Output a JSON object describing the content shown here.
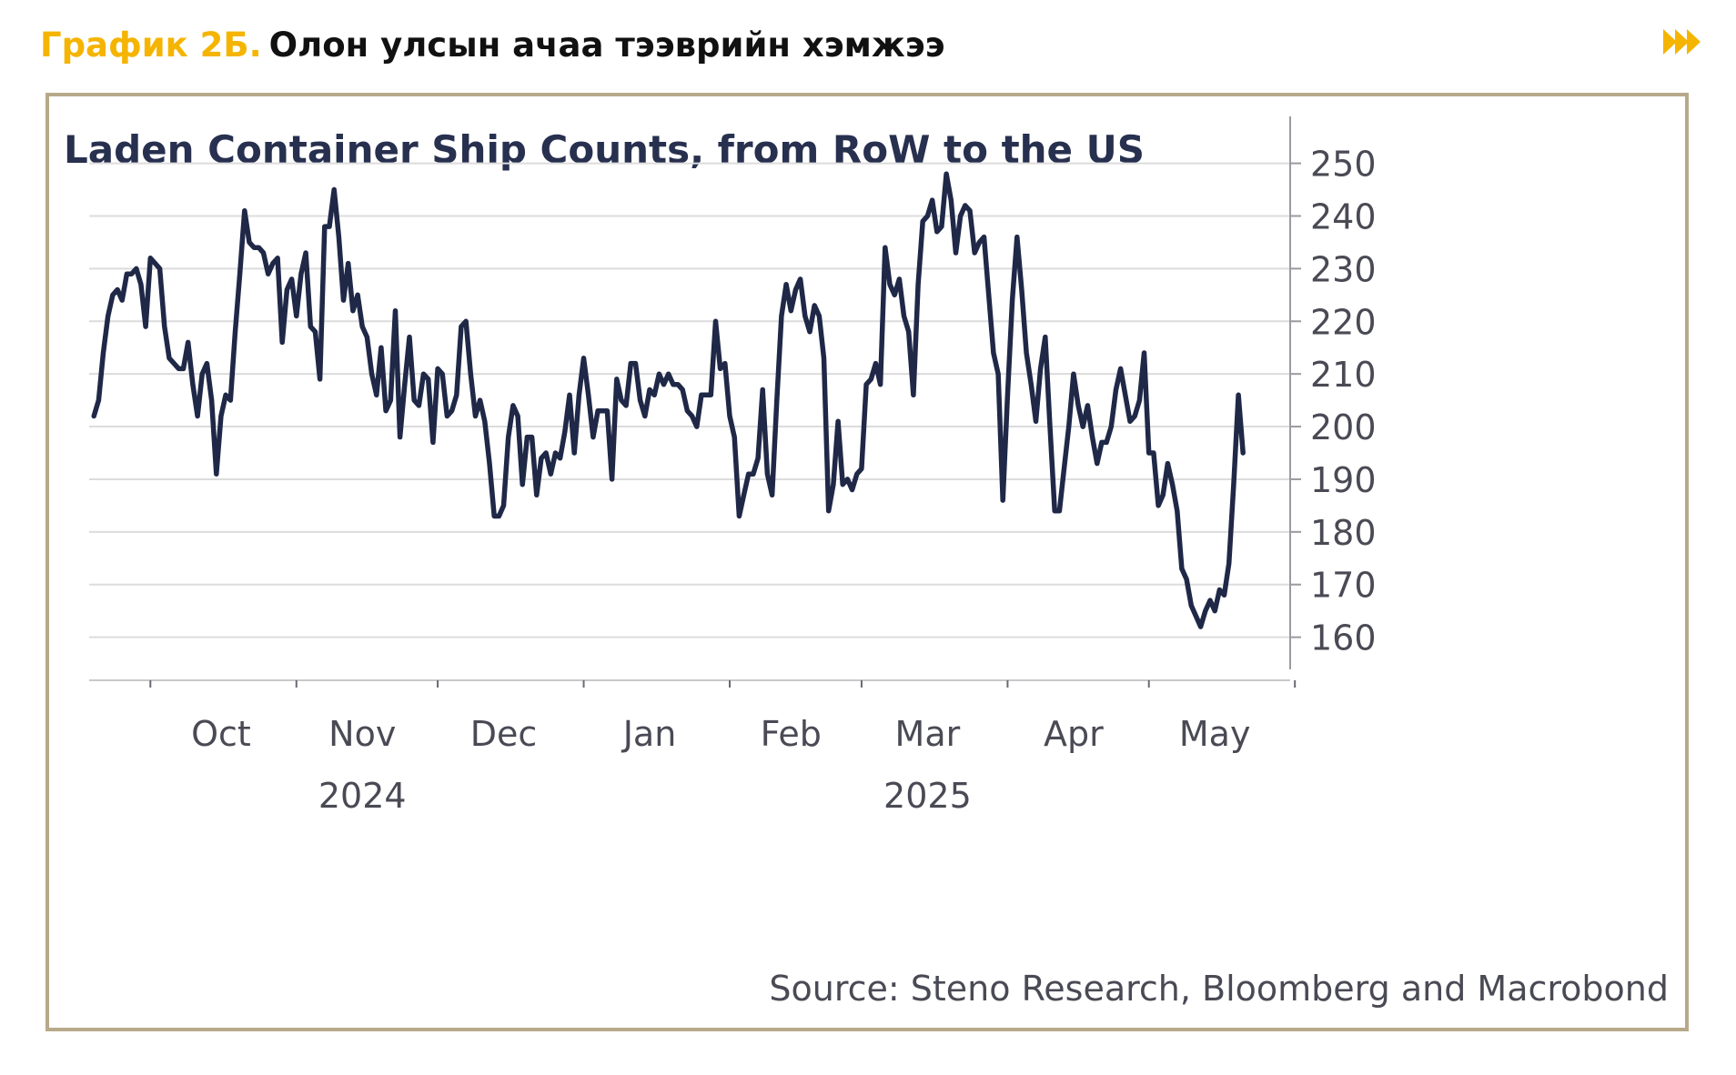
{
  "header": {
    "label": "График 2Б.",
    "title": "Олон улсын ачаа тээврийн хэмжээ",
    "next_icon": "fast-forward-icon"
  },
  "colors": {
    "accent": "#F5B400",
    "line": "#1F2847",
    "frame": "#B7A98A",
    "grid": "#DCDCDC"
  },
  "chart_data": {
    "type": "line",
    "title": "Laden Container Ship Counts, from RoW to the US",
    "source": "Source: Steno Research, Bloomberg and Macrobond",
    "y_axis": {
      "position": "right",
      "ylim": [
        157,
        252
      ],
      "ticks": [
        "160",
        "170",
        "180",
        "190",
        "200",
        "210",
        "220",
        "230",
        "240",
        "250"
      ]
    },
    "x_axis": {
      "xlim": [
        "2024-09-18",
        "2025-05-31"
      ],
      "month_labels": [
        {
          "date": "2024-10-16",
          "label": "Oct"
        },
        {
          "date": "2024-11-15",
          "label": "Nov"
        },
        {
          "date": "2024-12-15",
          "label": "Dec"
        },
        {
          "date": "2025-01-15",
          "label": "Jan"
        },
        {
          "date": "2025-02-14",
          "label": "Feb"
        },
        {
          "date": "2025-03-15",
          "label": "Mar"
        },
        {
          "date": "2025-04-15",
          "label": "Apr"
        },
        {
          "date": "2025-05-15",
          "label": "May"
        }
      ],
      "year_labels": [
        {
          "date": "2024-11-15",
          "label": "2024"
        },
        {
          "date": "2025-03-15",
          "label": "2025"
        }
      ],
      "tick_dates": [
        "2024-10-01",
        "2024-11-01",
        "2024-12-01",
        "2025-01-01",
        "2025-02-01",
        "2025-03-01",
        "2025-04-01",
        "2025-05-01",
        "2025-06-01"
      ]
    },
    "grid": true,
    "legend": "none",
    "series": [
      {
        "points": [
          [
            "2024-09-19",
            202
          ],
          [
            "2024-09-20",
            205
          ],
          [
            "2024-09-21",
            214
          ],
          [
            "2024-09-22",
            221
          ],
          [
            "2024-09-23",
            225
          ],
          [
            "2024-09-24",
            226
          ],
          [
            "2024-09-25",
            224
          ],
          [
            "2024-09-26",
            229
          ],
          [
            "2024-09-27",
            229
          ],
          [
            "2024-09-28",
            230
          ],
          [
            "2024-09-29",
            227
          ],
          [
            "2024-09-30",
            219
          ],
          [
            "2024-10-01",
            232
          ],
          [
            "2024-10-02",
            231
          ],
          [
            "2024-10-03",
            230
          ],
          [
            "2024-10-04",
            219
          ],
          [
            "2024-10-05",
            213
          ],
          [
            "2024-10-06",
            212
          ],
          [
            "2024-10-07",
            211
          ],
          [
            "2024-10-08",
            211
          ],
          [
            "2024-10-09",
            216
          ],
          [
            "2024-10-10",
            208
          ],
          [
            "2024-10-11",
            202
          ],
          [
            "2024-10-12",
            210
          ],
          [
            "2024-10-13",
            212
          ],
          [
            "2024-10-14",
            205
          ],
          [
            "2024-10-15",
            191
          ],
          [
            "2024-10-16",
            202
          ],
          [
            "2024-10-17",
            206
          ],
          [
            "2024-10-18",
            205
          ],
          [
            "2024-10-19",
            218
          ],
          [
            "2024-10-20",
            229
          ],
          [
            "2024-10-21",
            241
          ],
          [
            "2024-10-22",
            235
          ],
          [
            "2024-10-23",
            234
          ],
          [
            "2024-10-24",
            234
          ],
          [
            "2024-10-25",
            233
          ],
          [
            "2024-10-26",
            229
          ],
          [
            "2024-10-27",
            231
          ],
          [
            "2024-10-28",
            232
          ],
          [
            "2024-10-29",
            216
          ],
          [
            "2024-10-30",
            226
          ],
          [
            "2024-10-31",
            228
          ],
          [
            "2024-11-01",
            221
          ],
          [
            "2024-11-02",
            229
          ],
          [
            "2024-11-03",
            233
          ],
          [
            "2024-11-04",
            219
          ],
          [
            "2024-11-05",
            218
          ],
          [
            "2024-11-06",
            209
          ],
          [
            "2024-11-07",
            238
          ],
          [
            "2024-11-08",
            238
          ],
          [
            "2024-11-09",
            245
          ],
          [
            "2024-11-10",
            236
          ],
          [
            "2024-11-11",
            224
          ],
          [
            "2024-11-12",
            231
          ],
          [
            "2024-11-13",
            222
          ],
          [
            "2024-11-14",
            225
          ],
          [
            "2024-11-15",
            219
          ],
          [
            "2024-11-16",
            217
          ],
          [
            "2024-11-17",
            210
          ],
          [
            "2024-11-18",
            206
          ],
          [
            "2024-11-19",
            215
          ],
          [
            "2024-11-20",
            203
          ],
          [
            "2024-11-21",
            205
          ],
          [
            "2024-11-22",
            222
          ],
          [
            "2024-11-23",
            198
          ],
          [
            "2024-11-24",
            208
          ],
          [
            "2024-11-25",
            217
          ],
          [
            "2024-11-26",
            205
          ],
          [
            "2024-11-27",
            204
          ],
          [
            "2024-11-28",
            210
          ],
          [
            "2024-11-29",
            209
          ],
          [
            "2024-11-30",
            197
          ],
          [
            "2024-12-01",
            211
          ],
          [
            "2024-12-02",
            210
          ],
          [
            "2024-12-03",
            202
          ],
          [
            "2024-12-04",
            203
          ],
          [
            "2024-12-05",
            206
          ],
          [
            "2024-12-06",
            219
          ],
          [
            "2024-12-07",
            220
          ],
          [
            "2024-12-08",
            210
          ],
          [
            "2024-12-09",
            202
          ],
          [
            "2024-12-10",
            205
          ],
          [
            "2024-12-11",
            201
          ],
          [
            "2024-12-12",
            193
          ],
          [
            "2024-12-13",
            183
          ],
          [
            "2024-12-14",
            183
          ],
          [
            "2024-12-15",
            185
          ],
          [
            "2024-12-16",
            198
          ],
          [
            "2024-12-17",
            204
          ],
          [
            "2024-12-18",
            202
          ],
          [
            "2024-12-19",
            189
          ],
          [
            "2024-12-20",
            198
          ],
          [
            "2024-12-21",
            198
          ],
          [
            "2024-12-22",
            187
          ],
          [
            "2024-12-23",
            194
          ],
          [
            "2024-12-24",
            195
          ],
          [
            "2024-12-25",
            191
          ],
          [
            "2024-12-26",
            195
          ],
          [
            "2024-12-27",
            194
          ],
          [
            "2024-12-28",
            199
          ],
          [
            "2024-12-29",
            206
          ],
          [
            "2024-12-30",
            195
          ],
          [
            "2024-12-31",
            206
          ],
          [
            "2025-01-01",
            213
          ],
          [
            "2025-01-02",
            206
          ],
          [
            "2025-01-03",
            198
          ],
          [
            "2025-01-04",
            203
          ],
          [
            "2025-01-05",
            203
          ],
          [
            "2025-01-06",
            203
          ],
          [
            "2025-01-07",
            190
          ],
          [
            "2025-01-08",
            209
          ],
          [
            "2025-01-09",
            205
          ],
          [
            "2025-01-10",
            204
          ],
          [
            "2025-01-11",
            212
          ],
          [
            "2025-01-12",
            212
          ],
          [
            "2025-01-13",
            205
          ],
          [
            "2025-01-14",
            202
          ],
          [
            "2025-01-15",
            207
          ],
          [
            "2025-01-16",
            206
          ],
          [
            "2025-01-17",
            210
          ],
          [
            "2025-01-18",
            208
          ],
          [
            "2025-01-19",
            210
          ],
          [
            "2025-01-20",
            208
          ],
          [
            "2025-01-21",
            208
          ],
          [
            "2025-01-22",
            207
          ],
          [
            "2025-01-23",
            203
          ],
          [
            "2025-01-24",
            202
          ],
          [
            "2025-01-25",
            200
          ],
          [
            "2025-01-26",
            206
          ],
          [
            "2025-01-27",
            206
          ],
          [
            "2025-01-28",
            206
          ],
          [
            "2025-01-29",
            220
          ],
          [
            "2025-01-30",
            211
          ],
          [
            "2025-01-31",
            212
          ],
          [
            "2025-02-01",
            202
          ],
          [
            "2025-02-02",
            198
          ],
          [
            "2025-02-03",
            183
          ],
          [
            "2025-02-04",
            187
          ],
          [
            "2025-02-05",
            191
          ],
          [
            "2025-02-06",
            191
          ],
          [
            "2025-02-07",
            194
          ],
          [
            "2025-02-08",
            207
          ],
          [
            "2025-02-09",
            191
          ],
          [
            "2025-02-10",
            187
          ],
          [
            "2025-02-11",
            205
          ],
          [
            "2025-02-12",
            221
          ],
          [
            "2025-02-13",
            227
          ],
          [
            "2025-02-14",
            222
          ],
          [
            "2025-02-15",
            226
          ],
          [
            "2025-02-16",
            228
          ],
          [
            "2025-02-17",
            221
          ],
          [
            "2025-02-18",
            218
          ],
          [
            "2025-02-19",
            223
          ],
          [
            "2025-02-20",
            221
          ],
          [
            "2025-02-21",
            213
          ],
          [
            "2025-02-22",
            184
          ],
          [
            "2025-02-23",
            189
          ],
          [
            "2025-02-24",
            201
          ],
          [
            "2025-02-25",
            189
          ],
          [
            "2025-02-26",
            190
          ],
          [
            "2025-02-27",
            188
          ],
          [
            "2025-02-28",
            191
          ],
          [
            "2025-03-01",
            192
          ],
          [
            "2025-03-02",
            208
          ],
          [
            "2025-03-03",
            209
          ],
          [
            "2025-03-04",
            212
          ],
          [
            "2025-03-05",
            208
          ],
          [
            "2025-03-06",
            234
          ],
          [
            "2025-03-07",
            227
          ],
          [
            "2025-03-08",
            225
          ],
          [
            "2025-03-09",
            228
          ],
          [
            "2025-03-10",
            221
          ],
          [
            "2025-03-11",
            218
          ],
          [
            "2025-03-12",
            206
          ],
          [
            "2025-03-13",
            227
          ],
          [
            "2025-03-14",
            239
          ],
          [
            "2025-03-15",
            240
          ],
          [
            "2025-03-16",
            243
          ],
          [
            "2025-03-17",
            237
          ],
          [
            "2025-03-18",
            238
          ],
          [
            "2025-03-19",
            248
          ],
          [
            "2025-03-20",
            243
          ],
          [
            "2025-03-21",
            233
          ],
          [
            "2025-03-22",
            240
          ],
          [
            "2025-03-23",
            242
          ],
          [
            "2025-03-24",
            241
          ],
          [
            "2025-03-25",
            233
          ],
          [
            "2025-03-26",
            235
          ],
          [
            "2025-03-27",
            236
          ],
          [
            "2025-03-28",
            225
          ],
          [
            "2025-03-29",
            214
          ],
          [
            "2025-03-30",
            210
          ],
          [
            "2025-03-31",
            186
          ],
          [
            "2025-04-01",
            206
          ],
          [
            "2025-04-02",
            224
          ],
          [
            "2025-04-03",
            236
          ],
          [
            "2025-04-04",
            226
          ],
          [
            "2025-04-05",
            214
          ],
          [
            "2025-04-06",
            208
          ],
          [
            "2025-04-07",
            201
          ],
          [
            "2025-04-08",
            211
          ],
          [
            "2025-04-09",
            217
          ],
          [
            "2025-04-10",
            200
          ],
          [
            "2025-04-11",
            184
          ],
          [
            "2025-04-12",
            184
          ],
          [
            "2025-04-13",
            192
          ],
          [
            "2025-04-14",
            200
          ],
          [
            "2025-04-15",
            210
          ],
          [
            "2025-04-16",
            204
          ],
          [
            "2025-04-17",
            200
          ],
          [
            "2025-04-18",
            204
          ],
          [
            "2025-04-19",
            198
          ],
          [
            "2025-04-20",
            193
          ],
          [
            "2025-04-21",
            197
          ],
          [
            "2025-04-22",
            197
          ],
          [
            "2025-04-23",
            200
          ],
          [
            "2025-04-24",
            207
          ],
          [
            "2025-04-25",
            211
          ],
          [
            "2025-04-26",
            206
          ],
          [
            "2025-04-27",
            201
          ],
          [
            "2025-04-28",
            202
          ],
          [
            "2025-04-29",
            205
          ],
          [
            "2025-04-30",
            214
          ],
          [
            "2025-05-01",
            195
          ],
          [
            "2025-05-02",
            195
          ],
          [
            "2025-05-03",
            185
          ],
          [
            "2025-05-04",
            187
          ],
          [
            "2025-05-05",
            193
          ],
          [
            "2025-05-06",
            189
          ],
          [
            "2025-05-07",
            184
          ],
          [
            "2025-05-08",
            173
          ],
          [
            "2025-05-09",
            171
          ],
          [
            "2025-05-10",
            166
          ],
          [
            "2025-05-11",
            164
          ],
          [
            "2025-05-12",
            162
          ],
          [
            "2025-05-13",
            165
          ],
          [
            "2025-05-14",
            167
          ],
          [
            "2025-05-15",
            165
          ],
          [
            "2025-05-16",
            169
          ],
          [
            "2025-05-17",
            168
          ],
          [
            "2025-05-18",
            174
          ],
          [
            "2025-05-19",
            189
          ],
          [
            "2025-05-20",
            206
          ],
          [
            "2025-05-21",
            195
          ]
        ]
      }
    ]
  }
}
